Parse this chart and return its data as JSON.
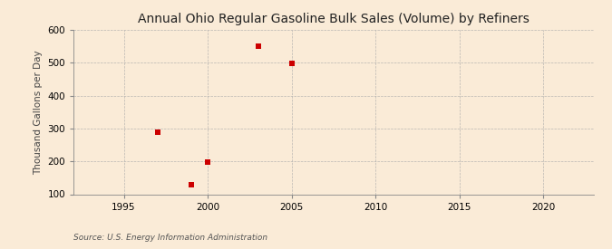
{
  "title": "Annual Ohio Regular Gasoline Bulk Sales (Volume) by Refiners",
  "ylabel": "Thousand Gallons per Day",
  "source": "Source: U.S. Energy Information Administration",
  "background_color": "#faebd7",
  "plot_bg_color": "#faebd7",
  "data_x": [
    1997,
    1999,
    2000,
    2003,
    2005
  ],
  "data_y": [
    289,
    130,
    197,
    550,
    497
  ],
  "marker_color": "#cc0000",
  "marker_size": 4,
  "xlim": [
    1992,
    2023
  ],
  "ylim": [
    100,
    600
  ],
  "xticks": [
    1995,
    2000,
    2005,
    2010,
    2015,
    2020
  ],
  "yticks": [
    100,
    200,
    300,
    400,
    500,
    600
  ],
  "title_fontsize": 10,
  "label_fontsize": 7.5,
  "tick_fontsize": 7.5,
  "source_fontsize": 6.5
}
